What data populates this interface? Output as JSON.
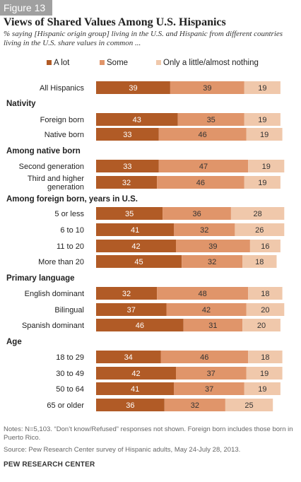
{
  "figure_label": "Figure 13",
  "title": "Views of Shared Values Among U.S. Hispanics",
  "subtitle": "% saying [Hispanic origin group] living in the U.S. and Hispanic from different countries living in the U.S. share values in common ...",
  "legend": [
    {
      "label": "A lot",
      "color": "#b15b26"
    },
    {
      "label": "Some",
      "color": "#e0956a"
    },
    {
      "label": "Only a little/almost nothing",
      "color": "#f0c8ab"
    }
  ],
  "notes": "Notes: N=5,103. “Don’t know/Refused” responses not shown. Foreign born includes those born in Puerto Rico.",
  "source": "Source: Pew Research Center survey of Hispanic adults, May 24-July 28, 2013.",
  "org": "PEW RESEARCH CENTER",
  "chart_data": {
    "type": "bar",
    "orientation": "horizontal",
    "stacked": true,
    "title": "Views of Shared Values Among U.S. Hispanics",
    "xlim": [
      0,
      100
    ],
    "series_names": [
      "A lot",
      "Some",
      "Only a little/almost nothing"
    ],
    "colors": [
      "#b15b26",
      "#e0956a",
      "#f0c8ab"
    ],
    "rows": [
      {
        "kind": "bar",
        "label": "All Hispanics",
        "values": [
          39,
          39,
          19
        ]
      },
      {
        "kind": "header",
        "label": "Nativity"
      },
      {
        "kind": "bar",
        "label": "Foreign born",
        "values": [
          43,
          35,
          19
        ]
      },
      {
        "kind": "bar",
        "label": "Native born",
        "values": [
          33,
          46,
          19
        ]
      },
      {
        "kind": "header",
        "label": "Among native born"
      },
      {
        "kind": "bar",
        "label": "Second generation",
        "values": [
          33,
          47,
          19
        ]
      },
      {
        "kind": "bar",
        "label": "Third and higher generation",
        "label_lines": [
          "Third and higher",
          "generation"
        ],
        "values": [
          32,
          46,
          19
        ]
      },
      {
        "kind": "header",
        "label": "Among foreign born, years in U.S."
      },
      {
        "kind": "bar",
        "label": "5 or less",
        "values": [
          35,
          36,
          28
        ]
      },
      {
        "kind": "bar",
        "label": "6 to 10",
        "values": [
          41,
          32,
          26
        ]
      },
      {
        "kind": "bar",
        "label": "11 to 20",
        "values": [
          42,
          39,
          16
        ]
      },
      {
        "kind": "bar",
        "label": "More than 20",
        "values": [
          45,
          32,
          18
        ]
      },
      {
        "kind": "header",
        "label": "Primary language"
      },
      {
        "kind": "bar",
        "label": "English dominant",
        "values": [
          32,
          48,
          18
        ]
      },
      {
        "kind": "bar",
        "label": "Bilingual",
        "values": [
          37,
          42,
          20
        ]
      },
      {
        "kind": "bar",
        "label": "Spanish dominant",
        "values": [
          46,
          31,
          20
        ]
      },
      {
        "kind": "header",
        "label": "Age"
      },
      {
        "kind": "bar",
        "label": "18 to 29",
        "values": [
          34,
          46,
          18
        ]
      },
      {
        "kind": "bar",
        "label": "30 to 49",
        "values": [
          42,
          37,
          19
        ]
      },
      {
        "kind": "bar",
        "label": "50 to 64",
        "values": [
          41,
          37,
          19
        ]
      },
      {
        "kind": "bar",
        "label": "65 or older",
        "values": [
          36,
          32,
          25
        ]
      }
    ]
  }
}
